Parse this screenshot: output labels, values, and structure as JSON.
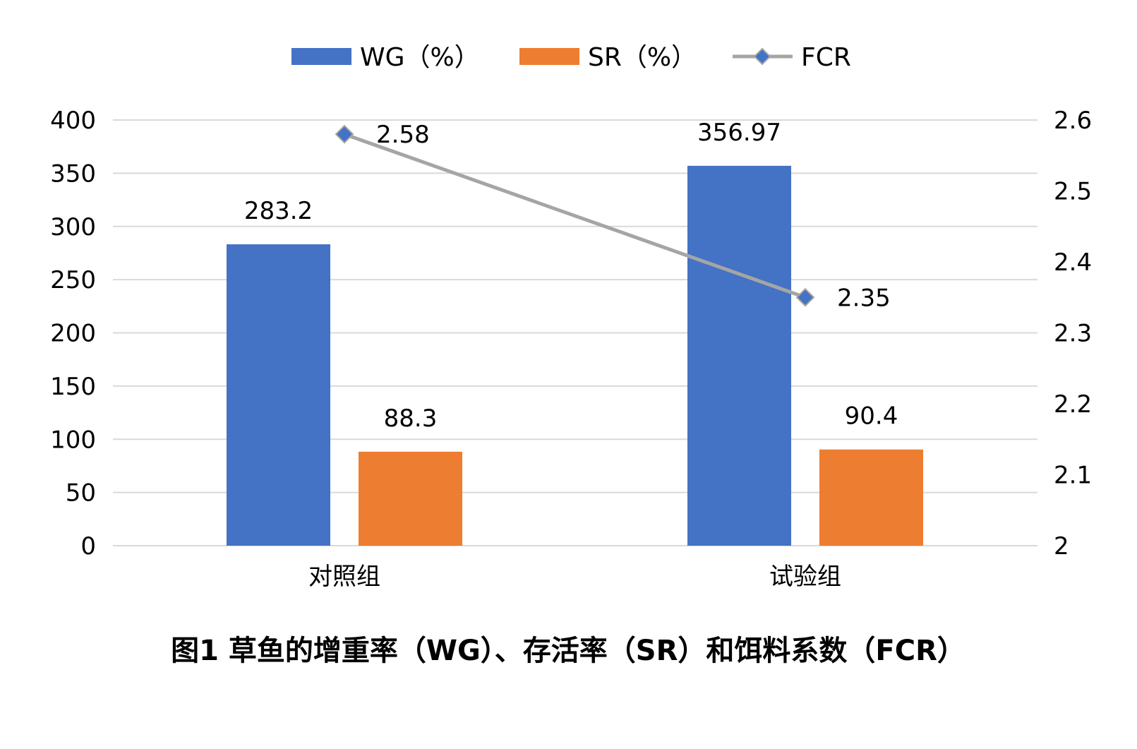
{
  "chart_data": {
    "type": "bar",
    "categories": [
      "对照组",
      "试验组"
    ],
    "series": [
      {
        "name": "WG（%）",
        "kind": "bar",
        "axis": "left",
        "color": "#4472C4",
        "values": [
          283.2,
          356.97
        ],
        "labels": [
          "283.2",
          "356.97"
        ]
      },
      {
        "name": "SR（%）",
        "kind": "bar",
        "axis": "left",
        "color": "#ED7D31",
        "values": [
          88.3,
          90.4
        ],
        "labels": [
          "88.3",
          "90.4"
        ]
      },
      {
        "name": "FCR",
        "kind": "line",
        "axis": "right",
        "color": "#A5A5A5",
        "marker_color": "#4472C4",
        "values": [
          2.58,
          2.35
        ],
        "labels": [
          "2.58",
          "2.35"
        ]
      }
    ],
    "y_left": {
      "min": 0,
      "max": 400,
      "ticks": [
        "0",
        "50",
        "100",
        "150",
        "200",
        "250",
        "300",
        "350",
        "400"
      ]
    },
    "y_right": {
      "min": 2,
      "max": 2.6,
      "ticks": [
        "2",
        "2.1",
        "2.2",
        "2.3",
        "2.4",
        "2.5",
        "2.6"
      ]
    },
    "grid": true,
    "legend_position": "top",
    "caption": "图1 草鱼的增重率（WG）、存活率（SR）和饵料系数（FCR）"
  }
}
